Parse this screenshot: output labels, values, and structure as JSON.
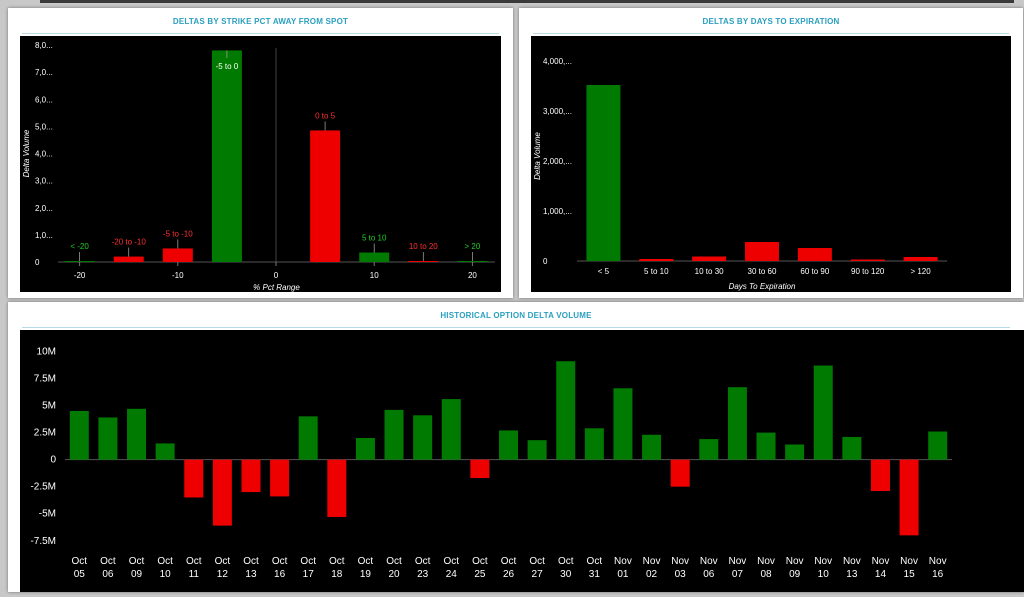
{
  "charts": {
    "strike": {
      "title": "DELTAS BY STRIKE PCT AWAY FROM SPOT",
      "chart_data": {
        "type": "bar",
        "title": "DELTAS BY STRIKE PCT AWAY FROM SPOT",
        "xlabel": "% Pct Range",
        "ylabel": "Delta Volume",
        "x_ticks": [
          "-20",
          "-10",
          "0",
          "10",
          "20"
        ],
        "x_tick_values": [
          -20,
          -10,
          0,
          10,
          20
        ],
        "y_ticks": [
          "0",
          "1,0...",
          "2,0...",
          "3,0...",
          "4,0...",
          "5,0...",
          "6,0...",
          "7,0...",
          "8,0..."
        ],
        "y_tick_values": [
          0,
          1000,
          2000,
          3000,
          4000,
          5000,
          6000,
          7000,
          8000
        ],
        "xlim": [
          -22.2,
          22.3
        ],
        "ylim": [
          0,
          8000
        ],
        "grid": false,
        "bars": [
          {
            "label": "< -20",
            "center": -20,
            "value": 30,
            "color": "#007a00"
          },
          {
            "label": "-20 to -10",
            "center": -15,
            "value": 200,
            "color": "#ee0000"
          },
          {
            "label": "-5 to -10",
            "center": -10,
            "value": 500,
            "color": "#ee0000"
          },
          {
            "label": "-5 to 0",
            "center": -5,
            "value": 7800,
            "color": "#007a00"
          },
          {
            "label": "0 to 5",
            "center": 5,
            "value": 4850,
            "color": "#ee0000"
          },
          {
            "label": "5 to 10",
            "center": 10,
            "value": 350,
            "color": "#007a00"
          },
          {
            "label": "10 to 20",
            "center": 15,
            "value": 20,
            "color": "#ee0000"
          },
          {
            "label": "> 20",
            "center": 20,
            "value": 20,
            "color": "#007a00"
          }
        ]
      }
    },
    "expiry": {
      "title": "DELTAS BY DAYS TO EXPIRATION",
      "chart_data": {
        "type": "bar",
        "title": "DELTAS BY DAYS TO EXPIRATION",
        "xlabel": "Days To Expiration",
        "ylabel": "Delta Volume",
        "categories": [
          "< 5",
          "5 to 10",
          "10 to 30",
          "30 to 60",
          "60 to 90",
          "90 to 120",
          "> 120"
        ],
        "values": [
          3520,
          40,
          90,
          380,
          260,
          10,
          80
        ],
        "colors": [
          "#007a00",
          "#ee0000",
          "#ee0000",
          "#ee0000",
          "#ee0000",
          "#ee0000",
          "#ee0000"
        ],
        "y_ticks": [
          "0",
          "1,000,...",
          "2,000,...",
          "3,000,...",
          "4,000,..."
        ],
        "y_tick_values": [
          0,
          1000,
          2000,
          3000,
          4000
        ],
        "ylim": [
          0,
          4000
        ],
        "grid": false
      }
    },
    "history": {
      "title": "HISTORICAL OPTION DELTA VOLUME",
      "chart_data": {
        "type": "bar",
        "title": "HISTORICAL OPTION DELTA VOLUME",
        "xlabel": "",
        "ylabel": "",
        "categories": [
          [
            "Oct",
            "05"
          ],
          [
            "Oct",
            "06"
          ],
          [
            "Oct",
            "09"
          ],
          [
            "Oct",
            "10"
          ],
          [
            "Oct",
            "11"
          ],
          [
            "Oct",
            "12"
          ],
          [
            "Oct",
            "13"
          ],
          [
            "Oct",
            "16"
          ],
          [
            "Oct",
            "17"
          ],
          [
            "Oct",
            "18"
          ],
          [
            "Oct",
            "19"
          ],
          [
            "Oct",
            "20"
          ],
          [
            "Oct",
            "23"
          ],
          [
            "Oct",
            "24"
          ],
          [
            "Oct",
            "25"
          ],
          [
            "Oct",
            "26"
          ],
          [
            "Oct",
            "27"
          ],
          [
            "Oct",
            "30"
          ],
          [
            "Oct",
            "31"
          ],
          [
            "Nov",
            "01"
          ],
          [
            "Nov",
            "02"
          ],
          [
            "Nov",
            "03"
          ],
          [
            "Nov",
            "06"
          ],
          [
            "Nov",
            "07"
          ],
          [
            "Nov",
            "08"
          ],
          [
            "Nov",
            "09"
          ],
          [
            "Nov",
            "10"
          ],
          [
            "Nov",
            "13"
          ],
          [
            "Nov",
            "14"
          ],
          [
            "Nov",
            "15"
          ],
          [
            "Nov",
            "16"
          ]
        ],
        "values": [
          4.5,
          3.9,
          4.7,
          1.5,
          -3.5,
          -6.1,
          -3.0,
          -3.4,
          4.0,
          -5.3,
          2.0,
          4.6,
          4.1,
          5.6,
          -1.7,
          2.7,
          1.8,
          9.1,
          2.9,
          6.6,
          2.3,
          -2.5,
          1.9,
          6.7,
          2.5,
          1.4,
          8.7,
          2.1,
          -2.9,
          -7.0,
          2.6
        ],
        "units": "M",
        "y_ticks": [
          "10M",
          "7.5M",
          "5M",
          "2.5M",
          "0",
          "-2.5M",
          "-5M",
          "-7.5M"
        ],
        "y_tick_values": [
          10,
          7.5,
          5,
          2.5,
          0,
          -2.5,
          -5,
          -7.5
        ],
        "ylim": [
          -7.8,
          10.6
        ],
        "positive_color": "#007a00",
        "negative_color": "#ee0000",
        "grid": false
      }
    }
  }
}
